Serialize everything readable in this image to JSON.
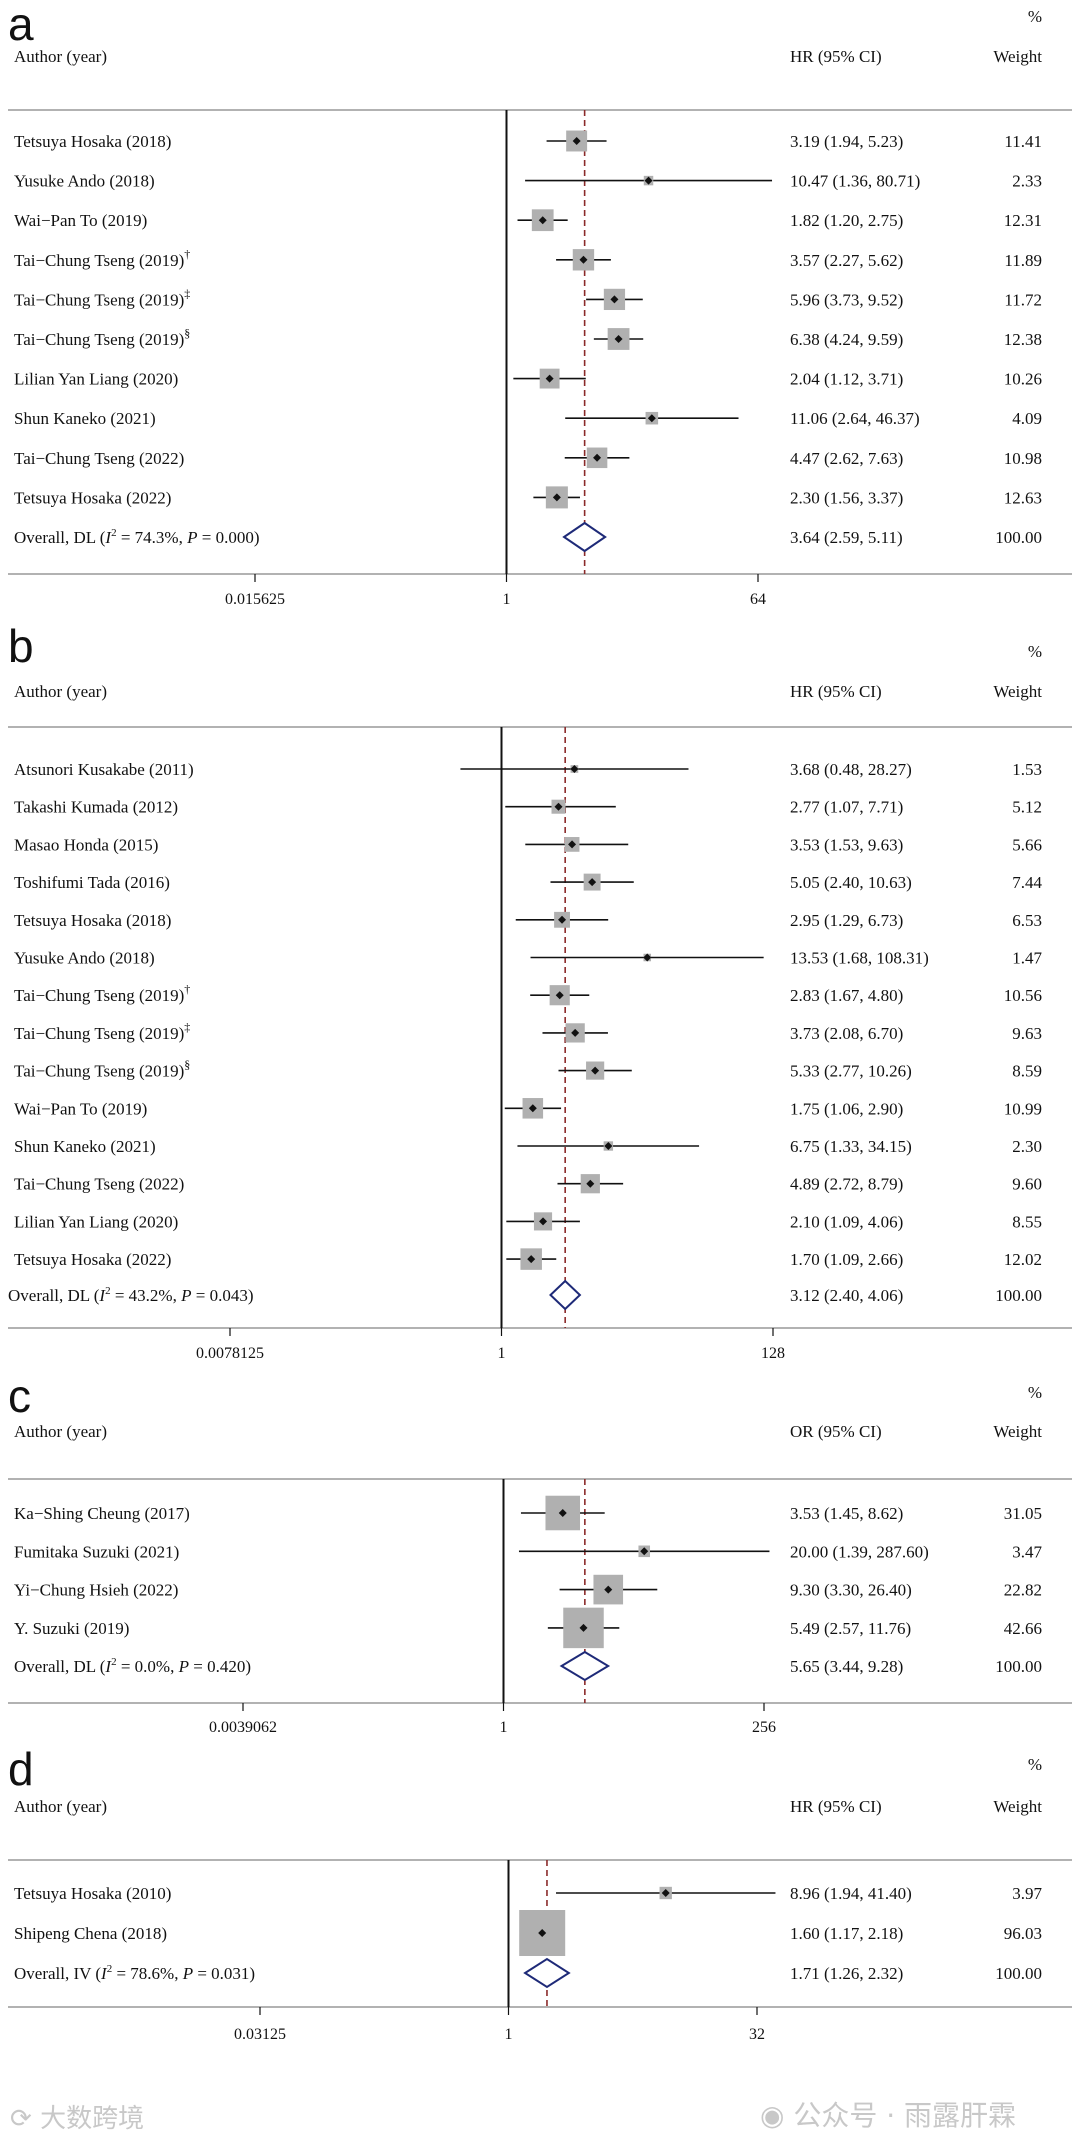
{
  "chart_data": [
    {
      "type": "forest",
      "panel": "a",
      "col_author": "Author (year)",
      "col_effect": "HR (95% CI)",
      "col_weight": "Weight",
      "pct": "%",
      "xscale": "log2",
      "xlim_log2": [
        -6.5,
        7
      ],
      "ticks": [
        {
          "label": "0.015625",
          "value": 0.015625
        },
        {
          "label": "1",
          "value": 1
        },
        {
          "label": "64",
          "value": 64
        }
      ],
      "studies": [
        {
          "author": "Tetsuya Hosaka (2018)",
          "sup": "",
          "est": 3.19,
          "lo": 1.94,
          "hi": 5.23,
          "text": "3.19 (1.94, 5.23)",
          "weight": "11.41",
          "w": 11.41
        },
        {
          "author": "Yusuke Ando (2018)",
          "sup": "",
          "est": 10.47,
          "lo": 1.36,
          "hi": 80.71,
          "text": "10.47 (1.36, 80.71)",
          "weight": "2.33",
          "w": 2.33
        },
        {
          "author": "Wai−Pan To (2019)",
          "sup": "",
          "est": 1.82,
          "lo": 1.2,
          "hi": 2.75,
          "text": "1.82 (1.20, 2.75)",
          "weight": "12.31",
          "w": 12.31
        },
        {
          "author": "Tai−Chung Tseng (2019)",
          "sup": "†",
          "est": 3.57,
          "lo": 2.27,
          "hi": 5.62,
          "text": "3.57 (2.27, 5.62)",
          "weight": "11.89",
          "w": 11.89
        },
        {
          "author": "Tai−Chung Tseng (2019)",
          "sup": "‡",
          "est": 5.96,
          "lo": 3.73,
          "hi": 9.52,
          "text": "5.96 (3.73, 9.52)",
          "weight": "11.72",
          "w": 11.72
        },
        {
          "author": "Tai−Chung Tseng (2019)",
          "sup": "§",
          "est": 6.38,
          "lo": 4.24,
          "hi": 9.59,
          "text": "6.38 (4.24, 9.59)",
          "weight": "12.38",
          "w": 12.38
        },
        {
          "author": "Lilian Yan Liang (2020)",
          "sup": "",
          "est": 2.04,
          "lo": 1.12,
          "hi": 3.71,
          "text": "2.04 (1.12, 3.71)",
          "weight": "10.26",
          "w": 10.26
        },
        {
          "author": "Shun Kaneko (2021)",
          "sup": "",
          "est": 11.06,
          "lo": 2.64,
          "hi": 46.37,
          "text": "11.06 (2.64, 46.37)",
          "weight": "4.09",
          "w": 4.09
        },
        {
          "author": "Tai−Chung Tseng (2022)",
          "sup": "",
          "est": 4.47,
          "lo": 2.62,
          "hi": 7.63,
          "text": "4.47 (2.62, 7.63)",
          "weight": "10.98",
          "w": 10.98
        },
        {
          "author": "Tetsuya Hosaka (2022)",
          "sup": "",
          "est": 2.3,
          "lo": 1.56,
          "hi": 3.37,
          "text": "2.30 (1.56, 3.37)",
          "weight": "12.63",
          "w": 12.63
        }
      ],
      "overall": {
        "prefix": "Overall, DL (",
        "stat": "I",
        "sup": "2",
        "rest": " = 74.3%, ",
        "p": "P",
        "ptail": " = 0.000)",
        "est": 3.64,
        "lo": 2.59,
        "hi": 5.11,
        "text": "3.64 (2.59, 5.11)",
        "weight": "100.00"
      }
    },
    {
      "type": "forest",
      "panel": "b",
      "col_author": "Author (year)",
      "col_effect": "HR (95% CI)",
      "col_weight": "Weight",
      "pct": "%",
      "xscale": "log2",
      "xlim_log2": [
        -7.5,
        8
      ],
      "ticks": [
        {
          "label": "0.0078125",
          "value": 0.0078125
        },
        {
          "label": "1",
          "value": 1
        },
        {
          "label": "128",
          "value": 128
        }
      ],
      "studies": [
        {
          "author": "Atsunori Kusakabe (2011)",
          "sup": "",
          "est": 3.68,
          "lo": 0.48,
          "hi": 28.27,
          "text": "3.68 (0.48, 28.27)",
          "weight": "1.53",
          "w": 1.53
        },
        {
          "author": "Takashi Kumada (2012)",
          "sup": "",
          "est": 2.77,
          "lo": 1.07,
          "hi": 7.71,
          "text": "2.77 (1.07, 7.71)",
          "weight": "5.12",
          "w": 5.12
        },
        {
          "author": "Masao Honda (2015)",
          "sup": "",
          "est": 3.53,
          "lo": 1.53,
          "hi": 9.63,
          "text": "3.53 (1.53, 9.63)",
          "weight": "5.66",
          "w": 5.66
        },
        {
          "author": "Toshifumi Tada (2016)",
          "sup": "",
          "est": 5.05,
          "lo": 2.4,
          "hi": 10.63,
          "text": "5.05 (2.40, 10.63)",
          "weight": "7.44",
          "w": 7.44
        },
        {
          "author": "Tetsuya Hosaka (2018)",
          "sup": "",
          "est": 2.95,
          "lo": 1.29,
          "hi": 6.73,
          "text": "2.95 (1.29, 6.73)",
          "weight": "6.53",
          "w": 6.53
        },
        {
          "author": "Yusuke Ando (2018)",
          "sup": "",
          "est": 13.53,
          "lo": 1.68,
          "hi": 108.31,
          "text": "13.53 (1.68, 108.31)",
          "weight": "1.47",
          "w": 1.47
        },
        {
          "author": "Tai−Chung Tseng (2019)",
          "sup": "†",
          "est": 2.83,
          "lo": 1.67,
          "hi": 4.8,
          "text": "2.83 (1.67, 4.80)",
          "weight": "10.56",
          "w": 10.56
        },
        {
          "author": "Tai−Chung Tseng (2019)",
          "sup": "‡",
          "est": 3.73,
          "lo": 2.08,
          "hi": 6.7,
          "text": "3.73 (2.08, 6.70)",
          "weight": "9.63",
          "w": 9.63
        },
        {
          "author": "Tai−Chung Tseng (2019)",
          "sup": "§",
          "est": 5.33,
          "lo": 2.77,
          "hi": 10.26,
          "text": "5.33 (2.77, 10.26)",
          "weight": "8.59",
          "w": 8.59
        },
        {
          "author": "Wai−Pan To (2019)",
          "sup": "",
          "est": 1.75,
          "lo": 1.06,
          "hi": 2.9,
          "text": "1.75 (1.06, 2.90)",
          "weight": "10.99",
          "w": 10.99
        },
        {
          "author": "Shun Kaneko (2021)",
          "sup": "",
          "est": 6.75,
          "lo": 1.33,
          "hi": 34.15,
          "text": "6.75 (1.33, 34.15)",
          "weight": "2.30",
          "w": 2.3
        },
        {
          "author": "Tai−Chung Tseng (2022)",
          "sup": "",
          "est": 4.89,
          "lo": 2.72,
          "hi": 8.79,
          "text": "4.89 (2.72, 8.79)",
          "weight": "9.60",
          "w": 9.6
        },
        {
          "author": "Lilian Yan Liang (2020)",
          "sup": "",
          "est": 2.1,
          "lo": 1.09,
          "hi": 4.06,
          "text": "2.10 (1.09, 4.06)",
          "weight": "8.55",
          "w": 8.55
        },
        {
          "author": "Tetsuya Hosaka (2022)",
          "sup": "",
          "est": 1.7,
          "lo": 1.09,
          "hi": 2.66,
          "text": "1.70 (1.09, 2.66)",
          "weight": "12.02",
          "w": 12.02
        }
      ],
      "overall": {
        "prefix": "Overall, DL (",
        "stat": "I",
        "sup": "2",
        "rest": " = 43.2%, ",
        "p": "P",
        "ptail": " = 0.043)",
        "est": 3.12,
        "lo": 2.4,
        "hi": 4.06,
        "text": "3.12 (2.40, 4.06)",
        "weight": "100.00"
      }
    },
    {
      "type": "forest",
      "panel": "c",
      "col_author": "Author (year)",
      "col_effect": "OR (95% CI)",
      "col_weight": "Weight",
      "pct": "%",
      "xscale": "log2",
      "xlim_log2": [
        -8.5,
        9
      ],
      "ticks": [
        {
          "label": "0.0039062",
          "value": 0.0039062
        },
        {
          "label": "1",
          "value": 1
        },
        {
          "label": "256",
          "value": 256
        }
      ],
      "studies": [
        {
          "author": "Ka−Shing Cheung (2017)",
          "sup": "",
          "est": 3.53,
          "lo": 1.45,
          "hi": 8.62,
          "text": "3.53 (1.45, 8.62)",
          "weight": "31.05",
          "w": 31.05
        },
        {
          "author": "Fumitaka Suzuki (2021)",
          "sup": "",
          "est": 20.0,
          "lo": 1.39,
          "hi": 287.6,
          "text": "20.00 (1.39, 287.60)",
          "weight": "3.47",
          "w": 3.47
        },
        {
          "author": "Yi−Chung Hsieh (2022)",
          "sup": "",
          "est": 9.3,
          "lo": 3.3,
          "hi": 26.4,
          "text": "9.30 (3.30, 26.40)",
          "weight": "22.82",
          "w": 22.82
        },
        {
          "author": "Y. Suzuki (2019)",
          "sup": "",
          "est": 5.49,
          "lo": 2.57,
          "hi": 11.76,
          "text": "5.49 (2.57, 11.76)",
          "weight": "42.66",
          "w": 42.66
        }
      ],
      "overall": {
        "prefix": "Overall, DL (",
        "stat": "I",
        "sup": "2",
        "rest": " = 0.0%, ",
        "p": "P",
        "ptail": " = 0.420)",
        "est": 5.65,
        "lo": 3.44,
        "hi": 9.28,
        "text": "5.65 (3.44, 9.28)",
        "weight": "100.00"
      }
    },
    {
      "type": "forest",
      "panel": "d",
      "col_author": "Author (year)",
      "col_effect": "HR (95% CI)",
      "col_weight": "Weight",
      "pct": "%",
      "xscale": "log2",
      "xlim_log2": [
        -5.6,
        6
      ],
      "ticks": [
        {
          "label": "0.03125",
          "value": 0.03125
        },
        {
          "label": "1",
          "value": 1
        },
        {
          "label": "32",
          "value": 32
        }
      ],
      "studies": [
        {
          "author": "Tetsuya Hosaka (2010)",
          "sup": "",
          "est": 8.96,
          "lo": 1.94,
          "hi": 41.4,
          "text": "8.96 (1.94, 41.40)",
          "weight": "3.97",
          "w": 3.97
        },
        {
          "author": "Shipeng Chena (2018)",
          "sup": "",
          "est": 1.6,
          "lo": 1.17,
          "hi": 2.18,
          "text": "1.60 (1.17, 2.18)",
          "weight": "96.03",
          "w": 96.03
        }
      ],
      "overall": {
        "prefix": "Overall, IV (",
        "stat": "I",
        "sup": "2",
        "rest": " = 78.6%, ",
        "p": "P",
        "ptail": " = 0.031)",
        "est": 1.71,
        "lo": 1.26,
        "hi": 2.32,
        "text": "1.71 (1.26, 2.32)",
        "weight": "100.00"
      }
    }
  ],
  "watermark": {
    "left": "大数跨境",
    "right": "公众号 · 雨露肝霖"
  },
  "colors": {
    "box": "#b0b0b0",
    "line": "#111111",
    "refline": "#8b2a2a",
    "diamond": "#1e2a78",
    "axis": "#111111"
  }
}
